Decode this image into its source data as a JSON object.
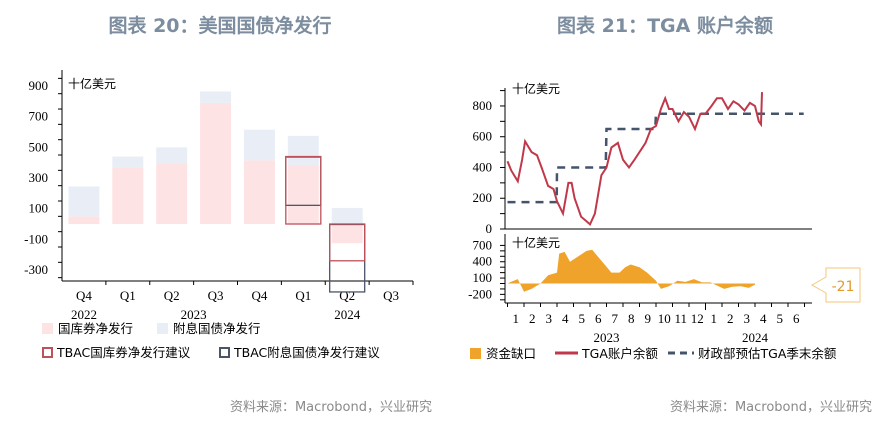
{
  "chart_data": [
    {
      "type": "bar",
      "title": "图表 20：美国国债净发行",
      "unit": "十亿美元",
      "source": "资料来源：Macrobond，兴业研究",
      "categories": [
        "Q4",
        "Q1",
        "Q2",
        "Q3",
        "Q4",
        "Q1",
        "Q2",
        "Q3"
      ],
      "years": [
        {
          "label": "2022",
          "at": 0
        },
        {
          "label": "2023",
          "at": 2.5
        },
        {
          "label": "2024",
          "at": 6
        }
      ],
      "ylim": [
        -350,
        950
      ],
      "yticks": [
        900,
        700,
        500,
        300,
        100,
        -100,
        -300
      ],
      "series": [
        {
          "name": "国库券净发行",
          "color": "#fde3e4",
          "values": [
            50,
            370,
            395,
            790,
            415,
            385,
            -125,
            null
          ]
        },
        {
          "name": "附息国债净发行",
          "color": "#e9eef6",
          "values": [
            195,
            70,
            105,
            75,
            200,
            190,
            105,
            null
          ]
        }
      ],
      "tbac": [
        {
          "name": "TBAC国库券净发行建议",
          "color": "#c0505a",
          "values": [
            null,
            null,
            null,
            null,
            null,
            440,
            -240,
            null
          ]
        },
        {
          "name": "TBAC附息国债净发行建议",
          "color": "#4a5568",
          "values": [
            null,
            null,
            null,
            null,
            null,
            315,
            440,
            null
          ]
        }
      ]
    },
    {
      "type": "line",
      "title": "图表 21：TGA 账户余额",
      "unit": "十亿美元",
      "unit_lower": "十亿美元",
      "source": "资料来源：Macrobond，兴业研究",
      "months": [
        "1",
        "2",
        "3",
        "4",
        "5",
        "6",
        "7",
        "8",
        "9",
        "10",
        "11",
        "12",
        "1",
        "2",
        "3",
        "4",
        "5",
        "6"
      ],
      "years": [
        {
          "label": "2023",
          "at": 6
        },
        {
          "label": "2024",
          "at": 15
        }
      ],
      "ylim": [
        0,
        900
      ],
      "yticks": [
        0,
        200,
        400,
        600,
        800
      ],
      "ylim_lower": [
        -300,
        750
      ],
      "yticks_lower": [
        700,
        400,
        100,
        -200
      ],
      "callout": "-21",
      "series": [
        {
          "name": "TGA账户余额",
          "color": "#c0394b",
          "points": [
            [
              "2023-01-01",
              440
            ],
            [
              "2023-01-08",
              380
            ],
            [
              "2023-01-20",
              310
            ],
            [
              "2023-01-28",
              450
            ],
            [
              "2023-02-03",
              570
            ],
            [
              "2023-02-15",
              500
            ],
            [
              "2023-02-25",
              480
            ],
            [
              "2023-03-03",
              400
            ],
            [
              "2023-03-15",
              280
            ],
            [
              "2023-03-25",
              260
            ],
            [
              "2023-04-01",
              180
            ],
            [
              "2023-04-12",
              100
            ],
            [
              "2023-04-22",
              300
            ],
            [
              "2023-04-28",
              300
            ],
            [
              "2023-05-03",
              200
            ],
            [
              "2023-05-15",
              80
            ],
            [
              "2023-05-25",
              50
            ],
            [
              "2023-06-01",
              30
            ],
            [
              "2023-06-10",
              100
            ],
            [
              "2023-06-22",
              350
            ],
            [
              "2023-07-01",
              400
            ],
            [
              "2023-07-10",
              530
            ],
            [
              "2023-07-22",
              560
            ],
            [
              "2023-08-01",
              450
            ],
            [
              "2023-08-12",
              400
            ],
            [
              "2023-08-22",
              450
            ],
            [
              "2023-09-01",
              500
            ],
            [
              "2023-09-12",
              560
            ],
            [
              "2023-09-22",
              650
            ],
            [
              "2023-10-01",
              670
            ],
            [
              "2023-10-10",
              780
            ],
            [
              "2023-10-18",
              850
            ],
            [
              "2023-10-25",
              780
            ],
            [
              "2023-11-01",
              780
            ],
            [
              "2023-11-12",
              700
            ],
            [
              "2023-11-22",
              760
            ],
            [
              "2023-12-01",
              730
            ],
            [
              "2023-12-12",
              650
            ],
            [
              "2023-12-22",
              750
            ],
            [
              "2024-01-01",
              750
            ],
            [
              "2024-01-12",
              800
            ],
            [
              "2024-01-22",
              850
            ],
            [
              "2024-02-01",
              850
            ],
            [
              "2024-02-12",
              780
            ],
            [
              "2024-02-22",
              830
            ],
            [
              "2024-03-01",
              810
            ],
            [
              "2024-03-12",
              770
            ],
            [
              "2024-03-22",
              820
            ],
            [
              "2024-04-01",
              800
            ],
            [
              "2024-04-08",
              700
            ],
            [
              "2024-04-12",
              680
            ],
            [
              "2024-04-14",
              890
            ]
          ]
        },
        {
          "name": "财政部预估TGA季末余额",
          "color": "#44546a",
          "dashed": true,
          "points": [
            [
              "2023-01-01",
              175
            ],
            [
              "2023-03-31",
              175
            ],
            [
              "2023-04-01",
              400
            ],
            [
              "2023-06-30",
              400
            ],
            [
              "2023-07-01",
              650
            ],
            [
              "2023-09-30",
              650
            ],
            [
              "2023-10-01",
              750
            ],
            [
              "2024-06-30",
              750
            ]
          ]
        },
        {
          "name": "资金缺口",
          "color": "#f0a32a",
          "type": "area",
          "panel": "lower",
          "points": [
            [
              "2023-01-01",
              0
            ],
            [
              "2023-01-10",
              40
            ],
            [
              "2023-01-20",
              80
            ],
            [
              "2023-02-01",
              -150
            ],
            [
              "2023-02-15",
              -100
            ],
            [
              "2023-03-01",
              0
            ],
            [
              "2023-03-15",
              150
            ],
            [
              "2023-04-01",
              200
            ],
            [
              "2023-04-05",
              550
            ],
            [
              "2023-04-15",
              580
            ],
            [
              "2023-04-25",
              400
            ],
            [
              "2023-05-10",
              500
            ],
            [
              "2023-05-25",
              600
            ],
            [
              "2023-06-05",
              620
            ],
            [
              "2023-06-15",
              500
            ],
            [
              "2023-06-28",
              350
            ],
            [
              "2023-07-10",
              200
            ],
            [
              "2023-07-25",
              200
            ],
            [
              "2023-08-05",
              300
            ],
            [
              "2023-08-15",
              350
            ],
            [
              "2023-09-01",
              300
            ],
            [
              "2023-09-15",
              200
            ],
            [
              "2023-10-01",
              50
            ],
            [
              "2023-10-10",
              -100
            ],
            [
              "2023-10-25",
              -50
            ],
            [
              "2023-11-10",
              50
            ],
            [
              "2023-11-25",
              30
            ],
            [
              "2023-12-10",
              80
            ],
            [
              "2023-12-25",
              20
            ],
            [
              "2024-01-10",
              20
            ],
            [
              "2024-01-25",
              -50
            ],
            [
              "2024-02-05",
              -100
            ],
            [
              "2024-02-20",
              -60
            ],
            [
              "2024-03-05",
              -50
            ],
            [
              "2024-03-20",
              -80
            ],
            [
              "2024-04-01",
              -21
            ]
          ]
        }
      ]
    }
  ]
}
